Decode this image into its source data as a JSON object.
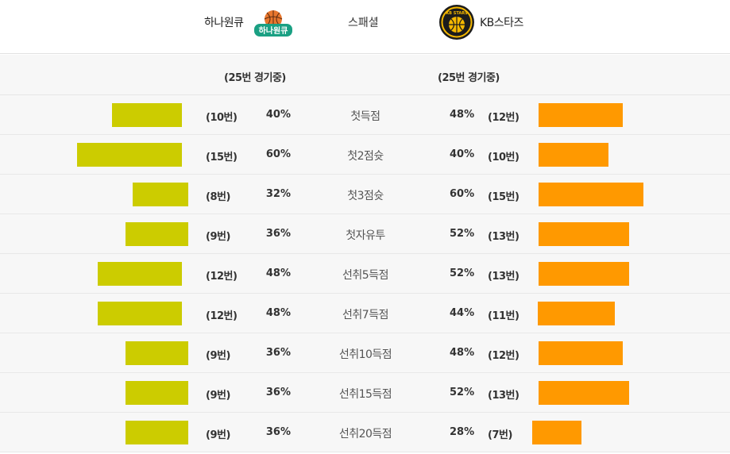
{
  "header": {
    "home_team": "하나원큐",
    "special": "스패셜",
    "away_team": "KB스타즈",
    "home_logo_text": "하나원큐",
    "away_logo_text": "KB STARS"
  },
  "games": {
    "home": "(25번 경기중)",
    "away": "(25번 경기중)"
  },
  "colors": {
    "home_bar": "#cccc00",
    "away_bar": "#ff9900"
  },
  "rows": [
    {
      "category": "첫득점",
      "home_count": "(10번)",
      "home_pct": "40%",
      "home_value": 40,
      "away_pct": "48%",
      "away_count": "(12번)",
      "away_value": 48
    },
    {
      "category": "첫2점슛",
      "home_count": "(15번)",
      "home_pct": "60%",
      "home_value": 60,
      "away_pct": "40%",
      "away_count": "(10번)",
      "away_value": 40
    },
    {
      "category": "첫3점슛",
      "home_count": "(8번)",
      "home_pct": "32%",
      "home_value": 32,
      "away_pct": "60%",
      "away_count": "(15번)",
      "away_value": 60
    },
    {
      "category": "첫자유투",
      "home_count": "(9번)",
      "home_pct": "36%",
      "home_value": 36,
      "away_pct": "52%",
      "away_count": "(13번)",
      "away_value": 52
    },
    {
      "category": "선취5득점",
      "home_count": "(12번)",
      "home_pct": "48%",
      "home_value": 48,
      "away_pct": "52%",
      "away_count": "(13번)",
      "away_value": 52
    },
    {
      "category": "선취7득점",
      "home_count": "(12번)",
      "home_pct": "48%",
      "home_value": 48,
      "away_pct": "44%",
      "away_count": "(11번)",
      "away_value": 44
    },
    {
      "category": "선취10득점",
      "home_count": "(9번)",
      "home_pct": "36%",
      "home_value": 36,
      "away_pct": "48%",
      "away_count": "(12번)",
      "away_value": 48
    },
    {
      "category": "선취15득점",
      "home_count": "(9번)",
      "home_pct": "36%",
      "home_value": 36,
      "away_pct": "52%",
      "away_count": "(13번)",
      "away_value": 52
    },
    {
      "category": "선취20득점",
      "home_count": "(9번)",
      "home_pct": "36%",
      "home_value": 36,
      "away_pct": "28%",
      "away_count": "(7번)",
      "away_value": 28
    }
  ]
}
